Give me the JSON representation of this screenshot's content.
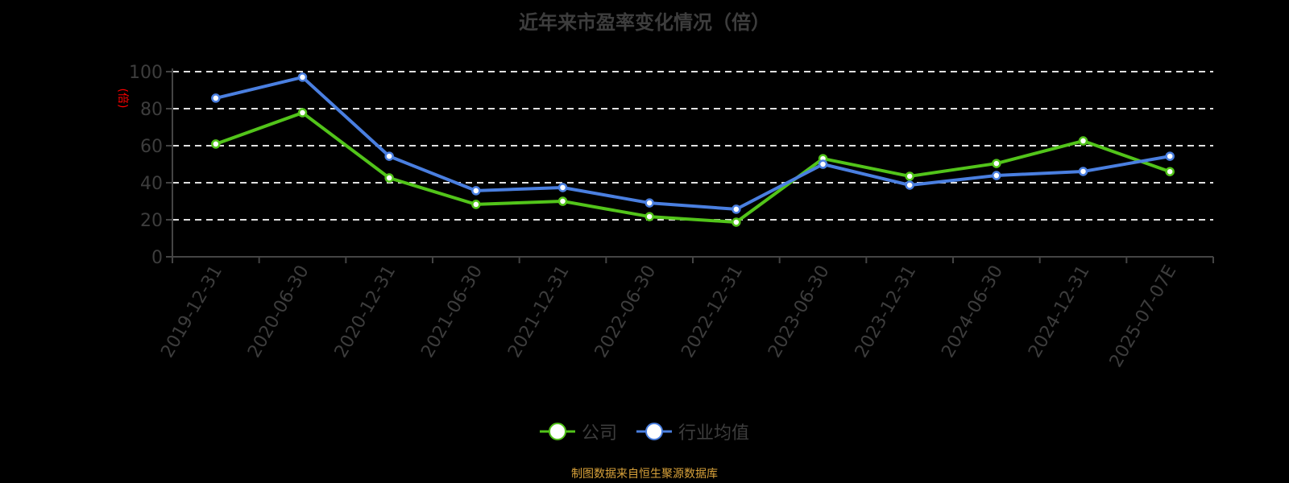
{
  "title": "近年来市盈率变化情况（倍）",
  "source": "制图数据来自恒生聚源数据库",
  "legend": [
    {
      "name": "公司",
      "color": "#52c41a"
    },
    {
      "name": "行业均值",
      "color": "#4a7fe0"
    }
  ],
  "chart_data": {
    "type": "line",
    "title": "近年来市盈率变化情况（倍）",
    "xlabel": "",
    "ylabel": "(倍)",
    "ylim": [
      0,
      100
    ],
    "yticks": [
      0,
      20,
      40,
      60,
      80,
      100
    ],
    "grid": true,
    "legend_position": "bottom",
    "categories": [
      "2019-12-31",
      "2020-06-30",
      "2020-12-31",
      "2021-06-30",
      "2021-12-31",
      "2022-06-30",
      "2022-12-31",
      "2023-06-30",
      "2023-12-31",
      "2024-06-30",
      "2024-12-31",
      "2025-07-07E"
    ],
    "series": [
      {
        "name": "公司",
        "color": "#52c41a",
        "values": [
          60.9,
          77.8,
          42.6,
          28.3,
          30.0,
          21.7,
          18.7,
          53.0,
          43.5,
          50.4,
          62.6,
          46.0
        ]
      },
      {
        "name": "行业均值",
        "color": "#4a7fe0",
        "values": [
          85.7,
          97.0,
          54.3,
          35.7,
          37.4,
          29.1,
          25.7,
          50.0,
          38.7,
          43.9,
          46.1,
          54.3
        ]
      }
    ]
  }
}
